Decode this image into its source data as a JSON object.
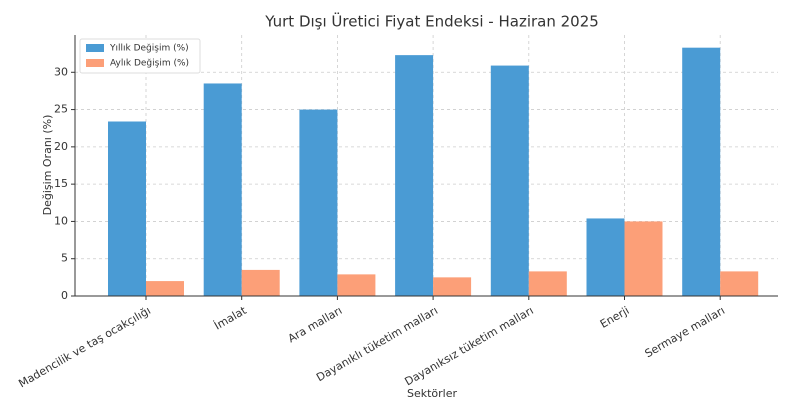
{
  "chart_data": {
    "type": "bar",
    "title": "Yurt Dışı Üretici Fiyat Endeksi - Haziran 2025",
    "xlabel": "Sektörler",
    "ylabel": "Değişim Oranı (%)",
    "categories": [
      "Madencilik ve taş ocakçılığı",
      "İmalat",
      "Ara malları",
      "Dayanıklı tüketim malları",
      "Dayanıksız tüketim malları",
      "Enerji",
      "Sermaye malları"
    ],
    "series": [
      {
        "name": "Yıllık Değişim (%)",
        "color": "#4a9bd4",
        "values": [
          23.4,
          28.5,
          25.0,
          32.3,
          30.9,
          10.4,
          33.3
        ]
      },
      {
        "name": "Aylık Değişim (%)",
        "color": "#fc9f78",
        "values": [
          2.0,
          3.5,
          2.9,
          2.5,
          3.3,
          10.0,
          3.3
        ]
      }
    ],
    "ylim": [
      0,
      35
    ],
    "yticks": [
      0,
      5,
      10,
      15,
      20,
      25,
      30
    ],
    "grid": true,
    "legend": "upper-left"
  }
}
